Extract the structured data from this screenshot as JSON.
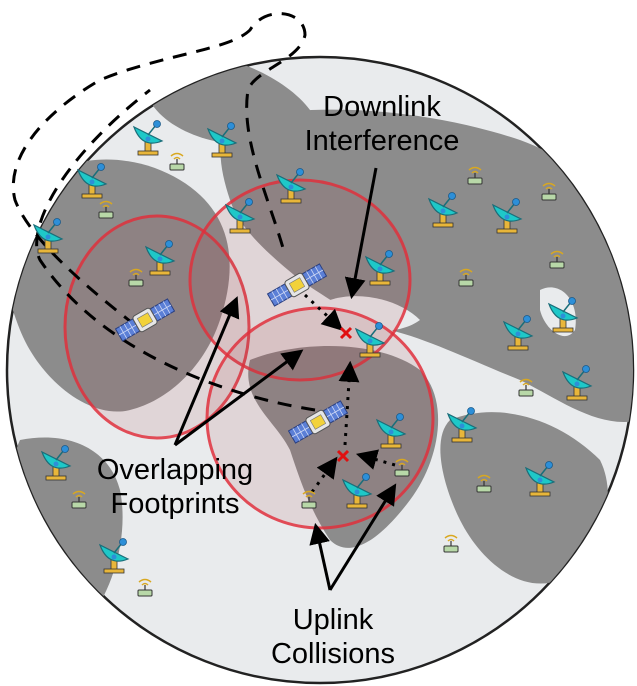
{
  "colors": {
    "ocean": "#e9ebed",
    "land": "#8c8c8c",
    "footprint_stroke": "#e0303c",
    "footprint_fill": "#c0404a",
    "dish": "#1ec8c8",
    "dish_stand": "#e8b63a",
    "terminal": "#b8d8a8",
    "collision_mark": "#e01010"
  },
  "icons": {
    "satellite": "satellite-icon",
    "ground_station": "satellite-dish-icon",
    "user_terminal": "iot-terminal-icon",
    "collision": "collision-x-icon"
  },
  "labels": {
    "downlink": [
      "Downlink",
      "Interference"
    ],
    "footprints": [
      "Overlapping",
      "Footprints"
    ],
    "uplink": [
      "Uplink",
      "Collisions"
    ]
  }
}
